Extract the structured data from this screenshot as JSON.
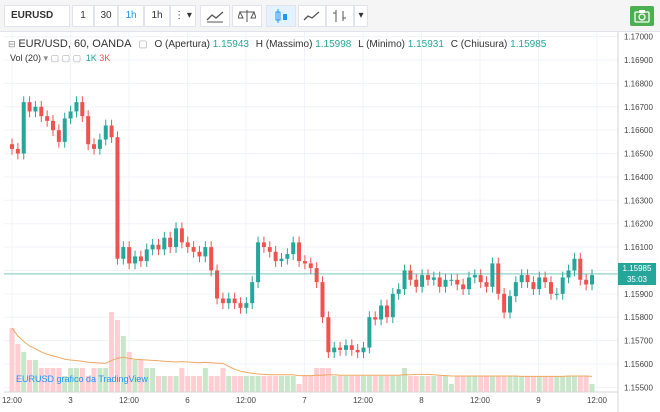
{
  "toolbar": {
    "symbol": "EURUSD",
    "intervals": [
      "1",
      "30",
      "1h",
      "1h"
    ],
    "more_label": "⋮",
    "dropdown_label": "▾"
  },
  "header": {
    "title": "EUR/USD, 60, OANDA",
    "o_label": "O (Apertura)",
    "o_val": "1.15943",
    "h_label": "H (Massimo)",
    "h_val": "1.15998",
    "l_label": "L (Minimo)",
    "l_val": "1.15931",
    "c_label": "C (Chiusura)",
    "c_val": "1.15985",
    "vol_label": "Vol (20)",
    "vol_1k": "1K",
    "vol_3k": "3K"
  },
  "price_axis": [
    "1.17000",
    "1.16900",
    "1.16800",
    "1.16700",
    "1.16600",
    "1.16500",
    "1.16400",
    "1.16300",
    "1.16200",
    "1.16100",
    "1.16000",
    "1.15900",
    "1.15800",
    "1.15700",
    "1.15600",
    "1.15500"
  ],
  "time_axis": [
    {
      "label": "12:00"
    },
    {
      "label": "3"
    },
    {
      "label": "12:00"
    },
    {
      "label": "6"
    },
    {
      "label": "12:00"
    },
    {
      "label": "7"
    },
    {
      "label": "12:00"
    },
    {
      "label": "8"
    },
    {
      "label": "12:00"
    },
    {
      "label": "9"
    },
    {
      "label": "12:00"
    }
  ],
  "last_price": {
    "price": "1.15985",
    "countdown": "35:03"
  },
  "watermark": "EURUSD grafico da TradingView",
  "colors": {
    "up": "#26a69a",
    "down": "#ef5350",
    "vol_up": "#c8e6c9",
    "vol_down": "#ffcdd2",
    "ma": "#f0a860"
  },
  "chart_data": {
    "type": "candlestick",
    "title": "EUR/USD, 60, OANDA",
    "ylim": [
      1.1548,
      1.1702
    ],
    "closes": [
      1.1652,
      1.165,
      1.1672,
      1.1668,
      1.167,
      1.1666,
      1.1664,
      1.166,
      1.1655,
      1.1665,
      1.1668,
      1.1672,
      1.1666,
      1.1654,
      1.1652,
      1.1656,
      1.1662,
      1.1657,
      1.1605,
      1.161,
      1.1603,
      1.1606,
      1.1604,
      1.1609,
      1.1611,
      1.1609,
      1.1614,
      1.161,
      1.1618,
      1.1612,
      1.161,
      1.1608,
      1.1606,
      1.161,
      1.16,
      1.1588,
      1.1586,
      1.1588,
      1.1586,
      1.1584,
      1.1586,
      1.1595,
      1.1612,
      1.161,
      1.1608,
      1.1604,
      1.1605,
      1.1607,
      1.1612,
      1.1604,
      1.1603,
      1.1601,
      1.1595,
      1.158,
      1.1565,
      1.1567,
      1.1566,
      1.1568,
      1.1566,
      1.1565,
      1.1567,
      1.158,
      1.1579,
      1.1585,
      1.158,
      1.159,
      1.1592,
      1.16,
      1.1596,
      1.1593,
      1.1598,
      1.1596,
      1.1597,
      1.1593,
      1.1596,
      1.1596,
      1.1594,
      1.1592,
      1.1597,
      1.1598,
      1.1595,
      1.1593,
      1.1603,
      1.159,
      1.1582,
      1.1589,
      1.1595,
      1.1598,
      1.1595,
      1.1592,
      1.1597,
      1.1595,
      1.159,
      1.159,
      1.1597,
      1.16,
      1.1605,
      1.1596,
      1.1594,
      1.1598
    ],
    "volumes": [
      0.8,
      0.6,
      0.5,
      0.4,
      0.4,
      0.3,
      0.3,
      0.3,
      0.3,
      0.2,
      0.3,
      0.3,
      0.3,
      0.2,
      0.3,
      0.3,
      0.3,
      1.0,
      0.9,
      0.7,
      0.5,
      0.4,
      0.4,
      0.3,
      0.3,
      0.2,
      0.2,
      0.2,
      0.2,
      0.3,
      0.2,
      0.2,
      0.2,
      0.3,
      0.2,
      0.2,
      0.3,
      0.2,
      0.2,
      0.2,
      0.2,
      0.2,
      0.2,
      0.2,
      0.2,
      0.2,
      0.2,
      0.2,
      0.2,
      0.1,
      0.2,
      0.2,
      0.3,
      0.3,
      0.3,
      0.2,
      0.2,
      0.2,
      0.2,
      0.2,
      0.2,
      0.2,
      0.2,
      0.2,
      0.2,
      0.2,
      0.2,
      0.3,
      0.2,
      0.2,
      0.2,
      0.2,
      0.2,
      0.2,
      0.2,
      0.1,
      0.2,
      0.2,
      0.2,
      0.2,
      0.2,
      0.2,
      0.2,
      0.2,
      0.2,
      0.2,
      0.2,
      0.2,
      0.2,
      0.2,
      0.2,
      0.2,
      0.2,
      0.2,
      0.2,
      0.2,
      0.2,
      0.2,
      0.2,
      0.1
    ],
    "volume_scale_labels": [
      "1K",
      "3K"
    ]
  }
}
